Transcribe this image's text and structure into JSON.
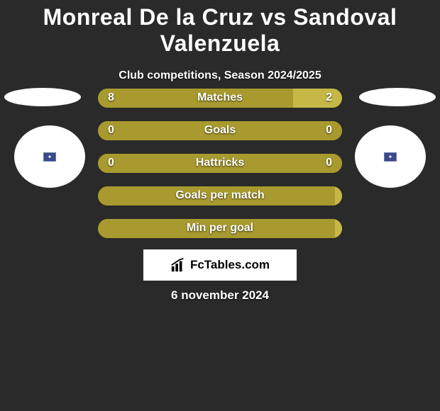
{
  "title": "Monreal De la Cruz vs Sandoval Valenzuela",
  "subtitle": "Club competitions, Season 2024/2025",
  "date": "6 november 2024",
  "logo_text": "FcTables.com",
  "colors": {
    "background": "#2a2a2a",
    "bar_left": "#a89a2e",
    "bar_right": "#c5b847",
    "text": "#ffffff",
    "logo_bg": "#ffffff",
    "logo_text": "#000000"
  },
  "bars": [
    {
      "label": "Matches",
      "left_value": "8",
      "right_value": "2",
      "left_pct": 80,
      "right_pct": 20,
      "show_values": true
    },
    {
      "label": "Goals",
      "left_value": "0",
      "right_value": "0",
      "left_pct": 100,
      "right_pct": 0,
      "show_values": true
    },
    {
      "label": "Hattricks",
      "left_value": "0",
      "right_value": "0",
      "left_pct": 100,
      "right_pct": 0,
      "show_values": true
    },
    {
      "label": "Goals per match",
      "left_value": "",
      "right_value": "",
      "left_pct": 97,
      "right_pct": 3,
      "show_values": false
    },
    {
      "label": "Min per goal",
      "left_value": "",
      "right_value": "",
      "left_pct": 97,
      "right_pct": 3,
      "show_values": false
    }
  ]
}
